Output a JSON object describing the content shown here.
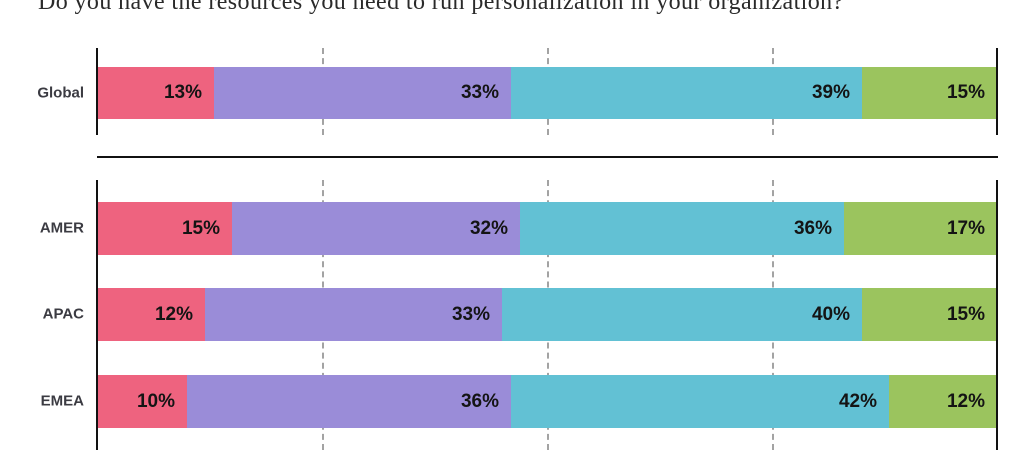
{
  "title": "Do you have the resources you need to run personalization in your organization?",
  "colors": {
    "segment_pink": "#EE637F",
    "segment_purple": "#9A8CD8",
    "segment_teal": "#62C1D4",
    "segment_green": "#9BC45E",
    "axis": "#121212",
    "gridline": "#a3a3a3",
    "category_label": "#3b3b42",
    "value_label": "#141414",
    "title_text": "#2a2a2a"
  },
  "chart_data": {
    "type": "bar",
    "stacked": true,
    "orientation": "horizontal",
    "title": "Do you have the resources you need to run personalization in your organization?",
    "unit": "%",
    "xlim": [
      0,
      100
    ],
    "gridlines_pct": [
      25,
      50,
      75
    ],
    "grid": "dashed-vertical",
    "legend": "none",
    "segment_names": [
      "pink",
      "purple",
      "teal",
      "green"
    ],
    "segment_colors": [
      "#EE637F",
      "#9A8CD8",
      "#62C1D4",
      "#9BC45E"
    ],
    "groups": [
      {
        "name": "global",
        "categories": [
          "Global"
        ],
        "series_values": [
          [
            13,
            33,
            39,
            15
          ]
        ]
      },
      {
        "name": "regions",
        "categories": [
          "AMER",
          "APAC",
          "EMEA"
        ],
        "series_values": [
          [
            15,
            32,
            36,
            17
          ],
          [
            12,
            33,
            40,
            15
          ],
          [
            10,
            36,
            42,
            12
          ]
        ]
      }
    ]
  }
}
